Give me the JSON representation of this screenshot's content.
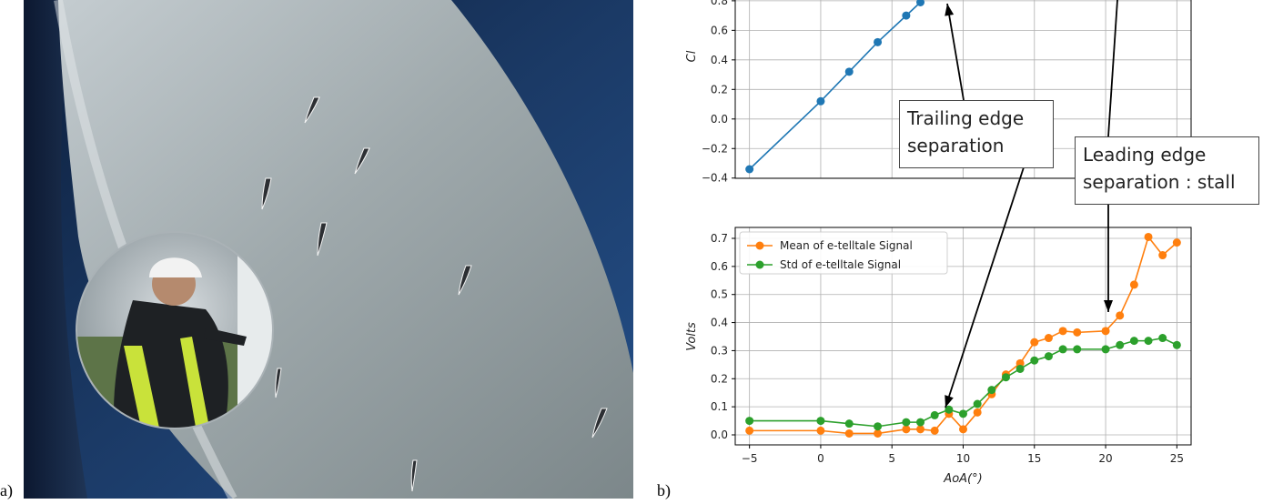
{
  "panel_labels": {
    "a": "a)",
    "b": "b)"
  },
  "callouts": {
    "trailing": "Trailing edge\nseparation",
    "leading": "Leading edge\nseparation : stall"
  },
  "chart_data": [
    {
      "type": "line",
      "title": "",
      "xlabel": "",
      "ylabel": "Cl",
      "ylim": [
        -0.4,
        0.8
      ],
      "yticks": [
        "0.8",
        "0.6",
        "0.4",
        "0.2",
        "0.0",
        "−0.2",
        "−0.4"
      ],
      "grid": true,
      "series": [
        {
          "color": "#1f77b4",
          "x": [
            -5,
            0,
            2,
            4,
            6,
            7
          ],
          "y": [
            -0.34,
            0.12,
            0.32,
            0.52,
            0.7,
            0.79
          ]
        }
      ]
    },
    {
      "type": "line",
      "title": "",
      "xlabel": "AoA(°)",
      "ylabel": "Volts",
      "xlim": [
        -6,
        26
      ],
      "ylim": [
        -0.02,
        0.73
      ],
      "xticks": [
        "−5",
        "0",
        "5",
        "10",
        "15",
        "20",
        "25"
      ],
      "yticks": [
        "0.7",
        "0.6",
        "0.5",
        "0.4",
        "0.3",
        "0.2",
        "0.1",
        "0.0"
      ],
      "grid": true,
      "legend_position": "top-left",
      "series": [
        {
          "name": "Mean of e-telltale Signal",
          "color": "#ff7f0e",
          "x": [
            -5,
            0,
            2,
            4,
            6,
            7,
            8,
            9,
            10,
            11,
            12,
            13,
            14,
            15,
            16,
            17,
            18,
            20,
            21,
            22,
            23,
            24,
            25
          ],
          "y": [
            0.015,
            0.015,
            0.005,
            0.005,
            0.02,
            0.02,
            0.015,
            0.075,
            0.02,
            0.08,
            0.145,
            0.215,
            0.255,
            0.33,
            0.345,
            0.37,
            0.365,
            0.37,
            0.425,
            0.535,
            0.705,
            0.64,
            0.685
          ]
        },
        {
          "name": "Std of e-telltale Signal",
          "color": "#2ca02c",
          "x": [
            -5,
            0,
            2,
            4,
            6,
            7,
            8,
            9,
            10,
            11,
            12,
            13,
            14,
            15,
            16,
            17,
            18,
            20,
            21,
            22,
            23,
            24,
            25
          ],
          "y": [
            0.05,
            0.05,
            0.04,
            0.03,
            0.045,
            0.045,
            0.07,
            0.09,
            0.075,
            0.11,
            0.16,
            0.205,
            0.235,
            0.265,
            0.28,
            0.305,
            0.305,
            0.305,
            0.32,
            0.335,
            0.335,
            0.345,
            0.32
          ]
        }
      ]
    }
  ]
}
